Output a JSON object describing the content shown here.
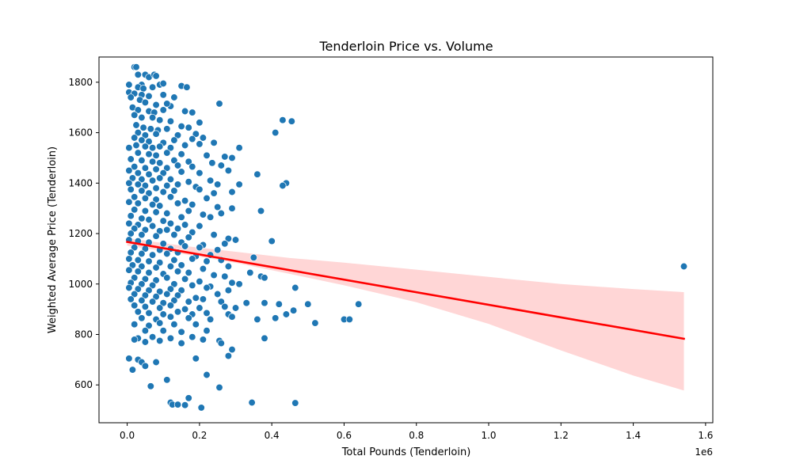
{
  "chart_data": {
    "type": "scatter",
    "title": "Tenderloin Price vs. Volume",
    "xlabel": "Total Pounds (Tenderloin)",
    "ylabel": "Weighted Average Price (Tenderloin)",
    "x_offset_label": "1e6",
    "xlim": [
      -0.078,
      1.62
    ],
    "ylim": [
      450,
      1900
    ],
    "x_ticks": [
      0.0,
      0.2,
      0.4,
      0.6,
      0.8,
      1.0,
      1.2,
      1.4,
      1.6
    ],
    "x_tick_labels": [
      "0.0",
      "0.2",
      "0.4",
      "0.6",
      "0.8",
      "1.0",
      "1.2",
      "1.4",
      "1.6"
    ],
    "y_ticks": [
      600,
      800,
      1000,
      1200,
      1400,
      1600,
      1800
    ],
    "y_tick_labels": [
      "600",
      "800",
      "1000",
      "1200",
      "1400",
      "1600",
      "1800"
    ],
    "grid": false,
    "legend": "none",
    "colors": {
      "points": "#1f77b4",
      "point_edge": "#ffffff",
      "regression_line": "#ff0000",
      "confidence_band": "#ffd6d6"
    },
    "regression_line": {
      "x": [
        0.0,
        1.54
      ],
      "y": [
        1167,
        783
      ]
    },
    "confidence_band": {
      "x": [
        0.0,
        0.15,
        0.3,
        0.45,
        0.6,
        0.8,
        1.0,
        1.2,
        1.4,
        1.54
      ],
      "upper": [
        1182,
        1152,
        1128,
        1103,
        1085,
        1057,
        1028,
        1000,
        980,
        968
      ],
      "lower": [
        1152,
        1120,
        1084,
        1040,
        995,
        928,
        842,
        737,
        637,
        578
      ]
    },
    "points": [
      [
        0.02,
        1860
      ],
      [
        0.025,
        1860
      ],
      [
        0.05,
        1830
      ],
      [
        0.06,
        1820
      ],
      [
        0.075,
        1830
      ],
      [
        0.08,
        1825
      ],
      [
        0.03,
        1830
      ],
      [
        0.04,
        1790
      ],
      [
        0.005,
        1790
      ],
      [
        0.03,
        1780
      ],
      [
        0.045,
        1775
      ],
      [
        0.07,
        1780
      ],
      [
        0.09,
        1790
      ],
      [
        0.1,
        1795
      ],
      [
        0.15,
        1785
      ],
      [
        0.165,
        1780
      ],
      [
        0.005,
        1760
      ],
      [
        0.02,
        1755
      ],
      [
        0.04,
        1750
      ],
      [
        0.06,
        1745
      ],
      [
        0.1,
        1750
      ],
      [
        0.13,
        1740
      ],
      [
        0.01,
        1740
      ],
      [
        0.035,
        1730
      ],
      [
        0.05,
        1720
      ],
      [
        0.08,
        1710
      ],
      [
        0.12,
        1705
      ],
      [
        0.11,
        1715
      ],
      [
        0.255,
        1715
      ],
      [
        0.015,
        1700
      ],
      [
        0.03,
        1690
      ],
      [
        0.06,
        1685
      ],
      [
        0.075,
        1680
      ],
      [
        0.1,
        1690
      ],
      [
        0.16,
        1685
      ],
      [
        0.18,
        1680
      ],
      [
        0.02,
        1670
      ],
      [
        0.04,
        1660
      ],
      [
        0.07,
        1660
      ],
      [
        0.09,
        1650
      ],
      [
        0.12,
        1645
      ],
      [
        0.2,
        1640
      ],
      [
        0.43,
        1650
      ],
      [
        0.455,
        1645
      ],
      [
        0.025,
        1630
      ],
      [
        0.045,
        1620
      ],
      [
        0.065,
        1615
      ],
      [
        0.085,
        1610
      ],
      [
        0.11,
        1615
      ],
      [
        0.15,
        1625
      ],
      [
        0.17,
        1620
      ],
      [
        0.03,
        1600
      ],
      [
        0.05,
        1590
      ],
      [
        0.08,
        1595
      ],
      [
        0.14,
        1590
      ],
      [
        0.19,
        1595
      ],
      [
        0.41,
        1600
      ],
      [
        0.02,
        1580
      ],
      [
        0.04,
        1570
      ],
      [
        0.06,
        1565
      ],
      [
        0.1,
        1560
      ],
      [
        0.13,
        1570
      ],
      [
        0.18,
        1575
      ],
      [
        0.21,
        1580
      ],
      [
        0.025,
        1550
      ],
      [
        0.05,
        1545
      ],
      [
        0.07,
        1540
      ],
      [
        0.09,
        1545
      ],
      [
        0.12,
        1540
      ],
      [
        0.16,
        1550
      ],
      [
        0.2,
        1555
      ],
      [
        0.24,
        1560
      ],
      [
        0.31,
        1540
      ],
      [
        0.005,
        1540
      ],
      [
        0.03,
        1520
      ],
      [
        0.06,
        1515
      ],
      [
        0.08,
        1510
      ],
      [
        0.11,
        1520
      ],
      [
        0.15,
        1515
      ],
      [
        0.22,
        1510
      ],
      [
        0.27,
        1505
      ],
      [
        0.29,
        1500
      ],
      [
        0.01,
        1495
      ],
      [
        0.04,
        1490
      ],
      [
        0.07,
        1485
      ],
      [
        0.09,
        1480
      ],
      [
        0.13,
        1490
      ],
      [
        0.17,
        1485
      ],
      [
        0.235,
        1480
      ],
      [
        0.02,
        1465
      ],
      [
        0.05,
        1460
      ],
      [
        0.08,
        1455
      ],
      [
        0.11,
        1460
      ],
      [
        0.14,
        1470
      ],
      [
        0.18,
        1465
      ],
      [
        0.26,
        1470
      ],
      [
        0.005,
        1450
      ],
      [
        0.03,
        1440
      ],
      [
        0.06,
        1435
      ],
      [
        0.1,
        1440
      ],
      [
        0.15,
        1445
      ],
      [
        0.2,
        1440
      ],
      [
        0.28,
        1450
      ],
      [
        0.36,
        1435
      ],
      [
        0.015,
        1420
      ],
      [
        0.04,
        1415
      ],
      [
        0.07,
        1410
      ],
      [
        0.09,
        1420
      ],
      [
        0.12,
        1415
      ],
      [
        0.17,
        1405
      ],
      [
        0.23,
        1410
      ],
      [
        0.005,
        1400
      ],
      [
        0.03,
        1395
      ],
      [
        0.05,
        1390
      ],
      [
        0.08,
        1380
      ],
      [
        0.11,
        1390
      ],
      [
        0.14,
        1395
      ],
      [
        0.19,
        1385
      ],
      [
        0.25,
        1395
      ],
      [
        0.31,
        1395
      ],
      [
        0.44,
        1400
      ],
      [
        0.43,
        1390
      ],
      [
        0.01,
        1375
      ],
      [
        0.04,
        1370
      ],
      [
        0.06,
        1360
      ],
      [
        0.1,
        1365
      ],
      [
        0.13,
        1370
      ],
      [
        0.2,
        1375
      ],
      [
        0.24,
        1360
      ],
      [
        0.29,
        1365
      ],
      [
        0.02,
        1345
      ],
      [
        0.05,
        1340
      ],
      [
        0.08,
        1335
      ],
      [
        0.12,
        1345
      ],
      [
        0.16,
        1330
      ],
      [
        0.22,
        1340
      ],
      [
        0.005,
        1325
      ],
      [
        0.03,
        1320
      ],
      [
        0.07,
        1315
      ],
      [
        0.09,
        1310
      ],
      [
        0.14,
        1320
      ],
      [
        0.18,
        1315
      ],
      [
        0.25,
        1305
      ],
      [
        0.29,
        1300
      ],
      [
        0.02,
        1295
      ],
      [
        0.05,
        1290
      ],
      [
        0.08,
        1285
      ],
      [
        0.11,
        1280
      ],
      [
        0.17,
        1290
      ],
      [
        0.21,
        1275
      ],
      [
        0.26,
        1280
      ],
      [
        0.37,
        1290
      ],
      [
        0.01,
        1270
      ],
      [
        0.04,
        1260
      ],
      [
        0.06,
        1255
      ],
      [
        0.1,
        1250
      ],
      [
        0.15,
        1265
      ],
      [
        0.23,
        1265
      ],
      [
        0.005,
        1240
      ],
      [
        0.03,
        1235
      ],
      [
        0.07,
        1230
      ],
      [
        0.12,
        1240
      ],
      [
        0.16,
        1235
      ],
      [
        0.2,
        1230
      ],
      [
        0.02,
        1220
      ],
      [
        0.05,
        1215
      ],
      [
        0.09,
        1210
      ],
      [
        0.11,
        1215
      ],
      [
        0.14,
        1220
      ],
      [
        0.18,
        1205
      ],
      [
        0.01,
        1200
      ],
      [
        0.04,
        1195
      ],
      [
        0.08,
        1190
      ],
      [
        0.13,
        1195
      ],
      [
        0.17,
        1185
      ],
      [
        0.24,
        1195
      ],
      [
        0.28,
        1180
      ],
      [
        0.3,
        1175
      ],
      [
        0.4,
        1170
      ],
      [
        0.005,
        1175
      ],
      [
        0.03,
        1170
      ],
      [
        0.06,
        1165
      ],
      [
        0.1,
        1160
      ],
      [
        0.15,
        1165
      ],
      [
        0.21,
        1155
      ],
      [
        0.27,
        1160
      ],
      [
        0.02,
        1145
      ],
      [
        0.05,
        1140
      ],
      [
        0.09,
        1135
      ],
      [
        0.12,
        1140
      ],
      [
        0.16,
        1150
      ],
      [
        0.2,
        1145
      ],
      [
        0.25,
        1135
      ],
      [
        0.01,
        1125
      ],
      [
        0.04,
        1120
      ],
      [
        0.07,
        1115
      ],
      [
        0.11,
        1120
      ],
      [
        0.14,
        1125
      ],
      [
        0.19,
        1110
      ],
      [
        0.23,
        1115
      ],
      [
        0.35,
        1105
      ],
      [
        0.005,
        1100
      ],
      [
        0.03,
        1095
      ],
      [
        0.06,
        1090
      ],
      [
        0.09,
        1085
      ],
      [
        0.13,
        1095
      ],
      [
        0.18,
        1100
      ],
      [
        0.22,
        1090
      ],
      [
        0.26,
        1095
      ],
      [
        0.015,
        1075
      ],
      [
        0.04,
        1070
      ],
      [
        0.08,
        1065
      ],
      [
        0.12,
        1070
      ],
      [
        0.15,
        1075
      ],
      [
        0.21,
        1060
      ],
      [
        0.28,
        1070
      ],
      [
        0.005,
        1055
      ],
      [
        0.03,
        1050
      ],
      [
        0.06,
        1045
      ],
      [
        0.1,
        1040
      ],
      [
        0.14,
        1050
      ],
      [
        0.17,
        1045
      ],
      [
        0.24,
        1035
      ],
      [
        0.34,
        1045
      ],
      [
        0.02,
        1025
      ],
      [
        0.05,
        1020
      ],
      [
        0.08,
        1015
      ],
      [
        0.11,
        1025
      ],
      [
        0.16,
        1020
      ],
      [
        0.2,
        1010
      ],
      [
        0.27,
        1030
      ],
      [
        0.37,
        1030
      ],
      [
        0.38,
        1025
      ],
      [
        0.01,
        1005
      ],
      [
        0.04,
        1000
      ],
      [
        0.07,
        995
      ],
      [
        0.13,
        1000
      ],
      [
        0.18,
        995
      ],
      [
        0.23,
        990
      ],
      [
        0.29,
        1005
      ],
      [
        0.31,
        1000
      ],
      [
        0.005,
        985
      ],
      [
        0.03,
        980
      ],
      [
        0.06,
        975
      ],
      [
        0.09,
        970
      ],
      [
        0.12,
        980
      ],
      [
        0.15,
        975
      ],
      [
        0.22,
        985
      ],
      [
        0.28,
        975
      ],
      [
        0.465,
        985
      ],
      [
        0.02,
        960
      ],
      [
        0.05,
        955
      ],
      [
        0.08,
        950
      ],
      [
        0.11,
        960
      ],
      [
        0.14,
        955
      ],
      [
        0.19,
        945
      ],
      [
        0.25,
        960
      ],
      [
        0.01,
        940
      ],
      [
        0.04,
        935
      ],
      [
        0.07,
        930
      ],
      [
        0.1,
        925
      ],
      [
        0.13,
        935
      ],
      [
        0.17,
        930
      ],
      [
        0.21,
        940
      ],
      [
        0.26,
        930
      ],
      [
        0.33,
        925
      ],
      [
        0.38,
        925
      ],
      [
        0.42,
        920
      ],
      [
        0.5,
        920
      ],
      [
        0.64,
        920
      ],
      [
        0.02,
        915
      ],
      [
        0.05,
        910
      ],
      [
        0.09,
        905
      ],
      [
        0.12,
        915
      ],
      [
        0.16,
        900
      ],
      [
        0.2,
        905
      ],
      [
        0.27,
        910
      ],
      [
        0.3,
        905
      ],
      [
        0.03,
        890
      ],
      [
        0.06,
        885
      ],
      [
        0.1,
        880
      ],
      [
        0.14,
        890
      ],
      [
        0.18,
        880
      ],
      [
        0.22,
        885
      ],
      [
        0.28,
        880
      ],
      [
        0.44,
        880
      ],
      [
        0.46,
        895
      ],
      [
        0.04,
        865
      ],
      [
        0.08,
        860
      ],
      [
        0.12,
        870
      ],
      [
        0.17,
        865
      ],
      [
        0.23,
        860
      ],
      [
        0.29,
        870
      ],
      [
        0.36,
        860
      ],
      [
        0.41,
        865
      ],
      [
        0.52,
        845
      ],
      [
        0.6,
        860
      ],
      [
        0.615,
        860
      ],
      [
        0.02,
        840
      ],
      [
        0.06,
        835
      ],
      [
        0.09,
        845
      ],
      [
        0.13,
        840
      ],
      [
        0.19,
        840
      ],
      [
        0.05,
        815
      ],
      [
        0.1,
        815
      ],
      [
        0.15,
        810
      ],
      [
        0.22,
        815
      ],
      [
        0.03,
        785
      ],
      [
        0.07,
        790
      ],
      [
        0.12,
        785
      ],
      [
        0.18,
        790
      ],
      [
        0.02,
        780
      ],
      [
        0.05,
        770
      ],
      [
        0.09,
        775
      ],
      [
        0.15,
        765
      ],
      [
        0.21,
        780
      ],
      [
        0.255,
        775
      ],
      [
        0.26,
        765
      ],
      [
        0.38,
        785
      ],
      [
        0.29,
        740
      ],
      [
        0.005,
        705
      ],
      [
        0.03,
        700
      ],
      [
        0.04,
        690
      ],
      [
        0.08,
        690
      ],
      [
        0.19,
        705
      ],
      [
        0.28,
        715
      ],
      [
        0.015,
        660
      ],
      [
        0.05,
        675
      ],
      [
        0.11,
        620
      ],
      [
        0.22,
        640
      ],
      [
        0.065,
        595
      ],
      [
        0.255,
        590
      ],
      [
        0.17,
        548
      ],
      [
        0.12,
        530
      ],
      [
        0.125,
        522
      ],
      [
        0.14,
        522
      ],
      [
        0.16,
        520
      ],
      [
        0.205,
        510
      ],
      [
        0.345,
        530
      ],
      [
        0.465,
        528
      ],
      [
        1.54,
        1070
      ]
    ]
  }
}
